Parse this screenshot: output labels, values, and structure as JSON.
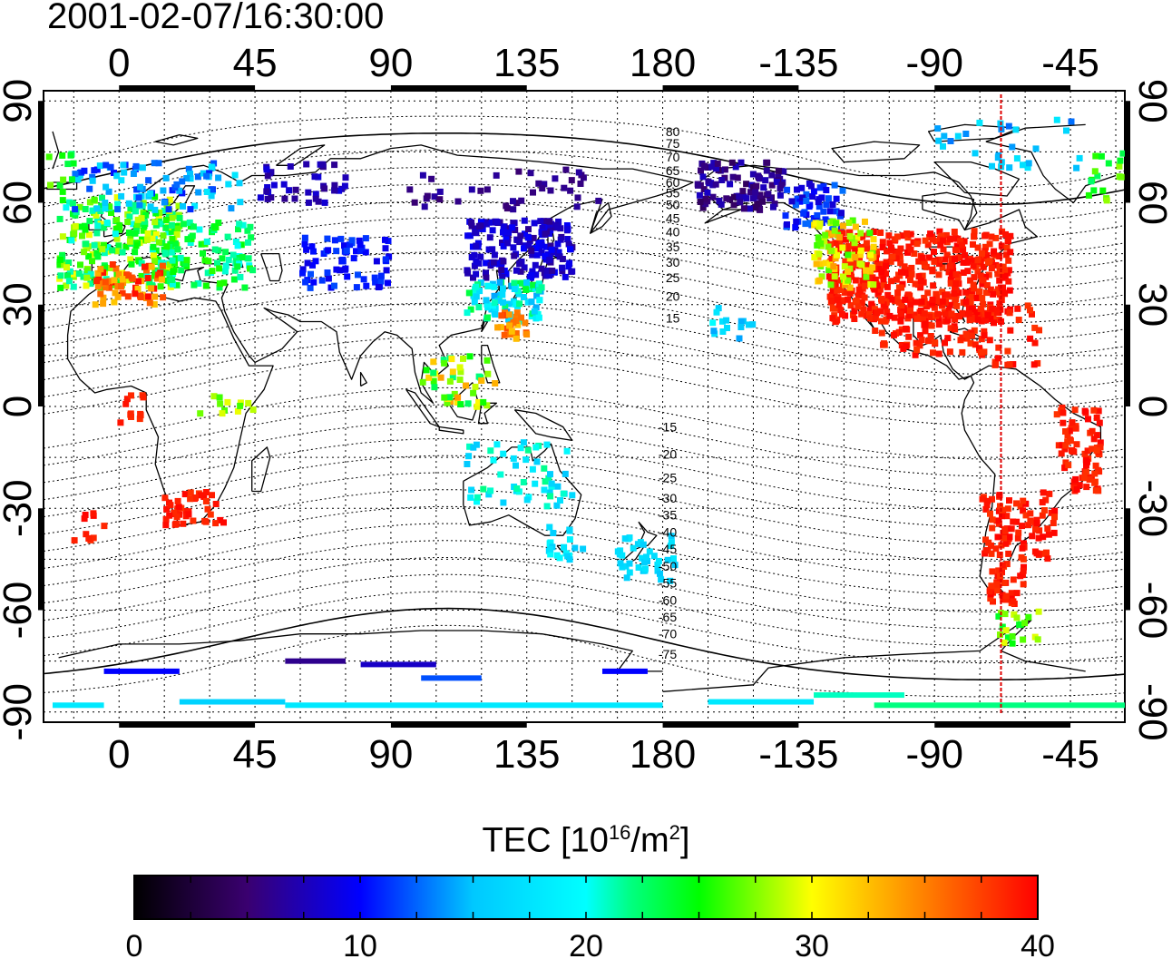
{
  "title": "2001-02-07/16:30:00",
  "map": {
    "lon_ticks_top": [
      "0",
      "45",
      "90",
      "135",
      "180",
      "-135",
      "-90",
      "-45"
    ],
    "lon_ticks_bottom": [
      "0",
      "45",
      "90",
      "135",
      "180",
      "-135",
      "-90",
      "-45"
    ],
    "lat_ticks_left": [
      "90",
      "60",
      "30",
      "0",
      "-30",
      "-60",
      "-90"
    ],
    "lat_ticks_right": [
      "90",
      "60",
      "30",
      "0",
      "-30",
      "-60",
      "-90"
    ],
    "contour_labels_north": [
      "80",
      "75",
      "70",
      "65",
      "60",
      "55",
      "50",
      "45",
      "40",
      "35",
      "30",
      "25",
      "20",
      "15"
    ],
    "contour_labels_south": [
      "-15",
      "-20",
      "-25",
      "-30",
      "-35",
      "-40",
      "-45",
      "-50",
      "-55",
      "-60",
      "-65",
      "-70",
      "-75"
    ],
    "marker_longitude": -68,
    "marker_color": "#e00000",
    "lon_range": [
      -25,
      333
    ],
    "lat_range": [
      -93,
      93
    ],
    "grid": "dotted"
  },
  "colorbar": {
    "title": "TEC  [10",
    "title_exp": "16",
    "title_unit": "/m",
    "title_unit_exp": "2",
    "title_close": "]",
    "ticks": [
      "0",
      "10",
      "20",
      "30",
      "40"
    ],
    "range": [
      0,
      40
    ],
    "palette": [
      "#000000",
      "#4b0082",
      "#0000ff",
      "#00ffff",
      "#00ff00",
      "#ffff00",
      "#ff8000",
      "#ff0000"
    ]
  }
}
